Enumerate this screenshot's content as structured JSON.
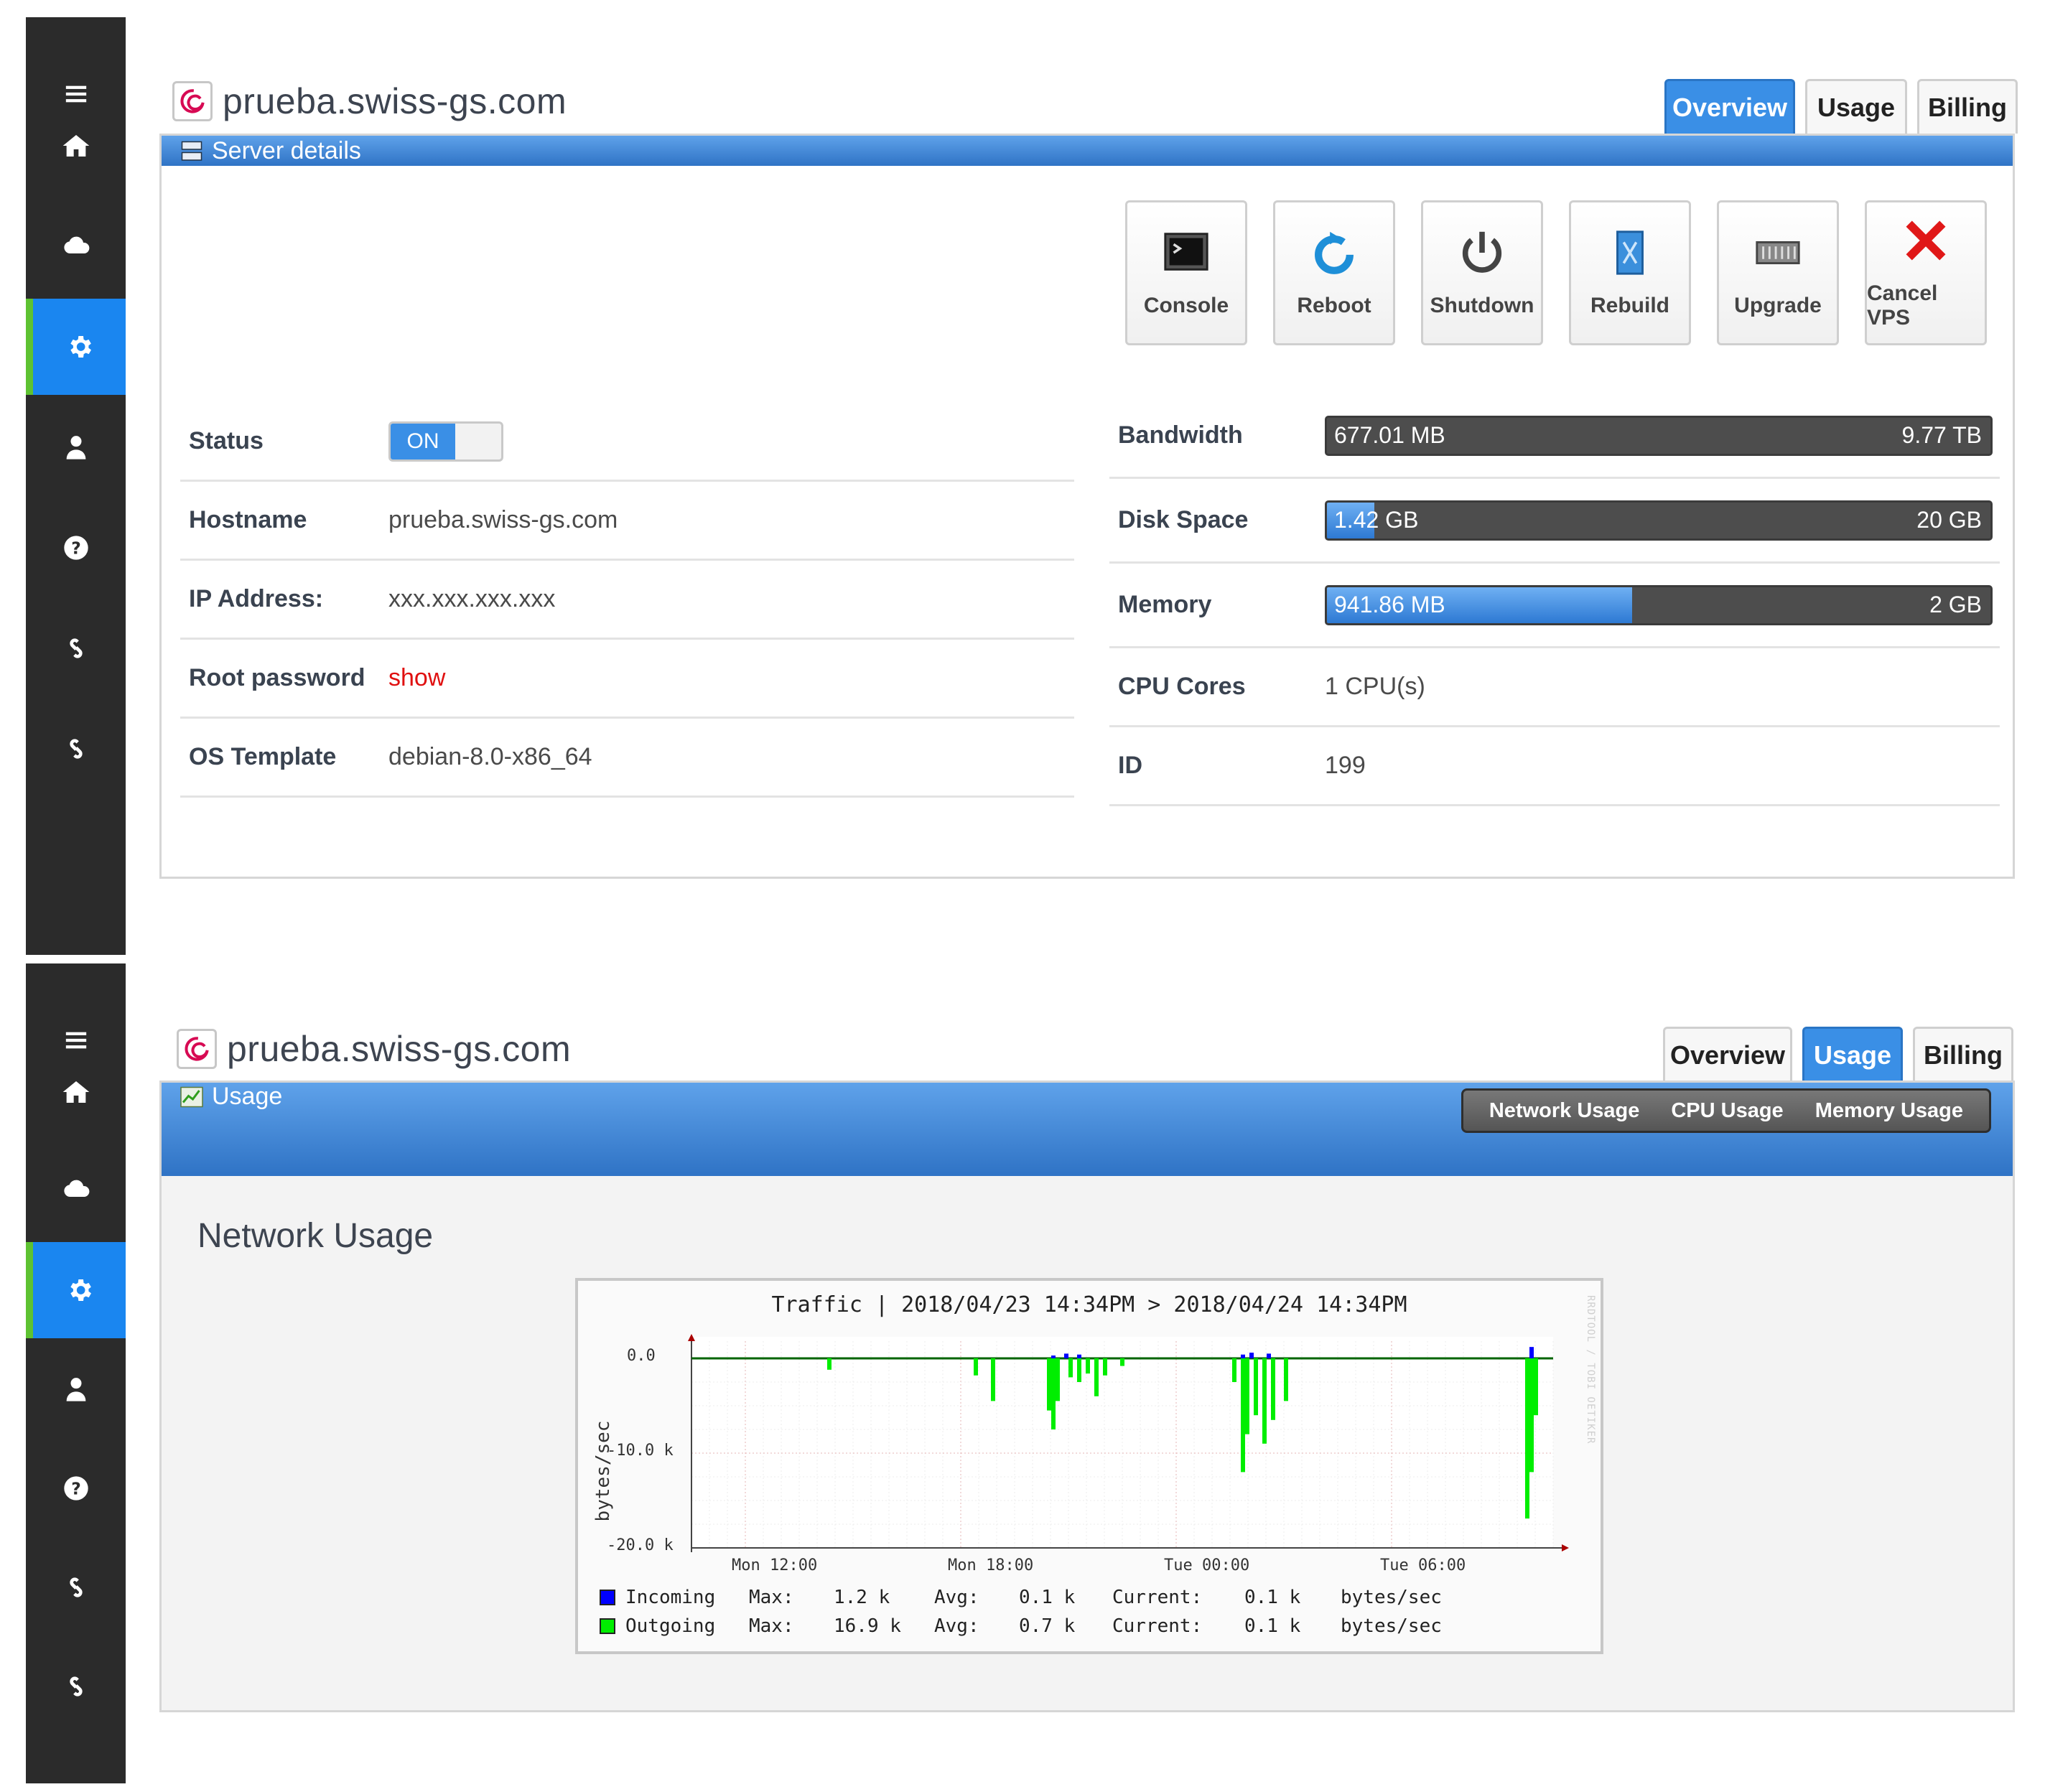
{
  "screen1": {
    "site_title": "prueba.swiss-gs.com",
    "tabs": [
      "Overview",
      "Usage",
      "Billing"
    ],
    "active_tab": "Overview",
    "section_label": "Server details",
    "actions": [
      "Console",
      "Reboot",
      "Shutdown",
      "Rebuild",
      "Upgrade",
      "Cancel VPS"
    ],
    "info_left": [
      {
        "key": "Status",
        "value": "ON"
      },
      {
        "key": "Hostname",
        "value": "prueba.swiss-gs.com"
      },
      {
        "key": "IP Address:",
        "value": "xxx.xxx.xxx.xxx"
      },
      {
        "key": "Root password",
        "value": "show"
      },
      {
        "key": "OS Template",
        "value": "debian-8.0-x86_64"
      }
    ],
    "info_right": [
      {
        "key": "Bandwidth",
        "used": "677.01 MB",
        "total": "9.77 TB",
        "fraction": 0.0
      },
      {
        "key": "Disk Space",
        "used": "1.42 GB",
        "total": "20 GB",
        "fraction": 0.071
      },
      {
        "key": "Memory",
        "used": "941.86 MB",
        "total": "2 GB",
        "fraction": 0.46
      },
      {
        "key": "CPU Cores",
        "value": "1 CPU(s)"
      },
      {
        "key": "ID",
        "value": "199"
      }
    ]
  },
  "screen2": {
    "site_title": "prueba.swiss-gs.com",
    "tabs": [
      "Overview",
      "Usage",
      "Billing"
    ],
    "active_tab": "Usage",
    "section_label": "Usage",
    "subnav": [
      "Network Usage",
      "CPU Usage",
      "Memory Usage"
    ],
    "section_title": "Network Usage"
  },
  "chart_data": {
    "type": "bar",
    "title": "Traffic | 2018/04/23 14:34PM > 2018/04/24 14:34PM",
    "ylabel": "bytes/sec",
    "ylim": [
      -20000,
      0
    ],
    "yticks": [
      "0.0",
      "-10.0 k",
      "-20.0 k"
    ],
    "xticks": [
      "Mon 12:00",
      "Mon 18:00",
      "Tue 00:00",
      "Tue 06:00"
    ],
    "watermark": "RRDTOOL / TOBI OETIKER",
    "series": [
      {
        "name": "Incoming",
        "color": "#0000ff",
        "max": "1.2 k",
        "avg": "0.1 k",
        "current": "0.1 k",
        "unit": "bytes/sec",
        "points": [
          [
            0.42,
            300
          ],
          [
            0.435,
            500
          ],
          [
            0.45,
            400
          ],
          [
            0.64,
            400
          ],
          [
            0.65,
            600
          ],
          [
            0.67,
            500
          ],
          [
            0.975,
            1200
          ]
        ]
      },
      {
        "name": "Outgoing",
        "color": "#00ee00",
        "max": "16.9 k",
        "avg": "0.7 k",
        "current": "0.1 k",
        "unit": "bytes/sec",
        "points": [
          [
            0.16,
            -1200
          ],
          [
            0.33,
            -1800
          ],
          [
            0.35,
            -4500
          ],
          [
            0.415,
            -5500
          ],
          [
            0.42,
            -7500
          ],
          [
            0.425,
            -4500
          ],
          [
            0.44,
            -2000
          ],
          [
            0.45,
            -2500
          ],
          [
            0.46,
            -1600
          ],
          [
            0.47,
            -4000
          ],
          [
            0.48,
            -1800
          ],
          [
            0.5,
            -800
          ],
          [
            0.63,
            -2500
          ],
          [
            0.64,
            -12000
          ],
          [
            0.645,
            -8000
          ],
          [
            0.655,
            -6000
          ],
          [
            0.665,
            -9000
          ],
          [
            0.675,
            -6500
          ],
          [
            0.69,
            -4500
          ],
          [
            0.97,
            -16900
          ],
          [
            0.975,
            -12000
          ],
          [
            0.98,
            -6000
          ]
        ]
      }
    ]
  }
}
